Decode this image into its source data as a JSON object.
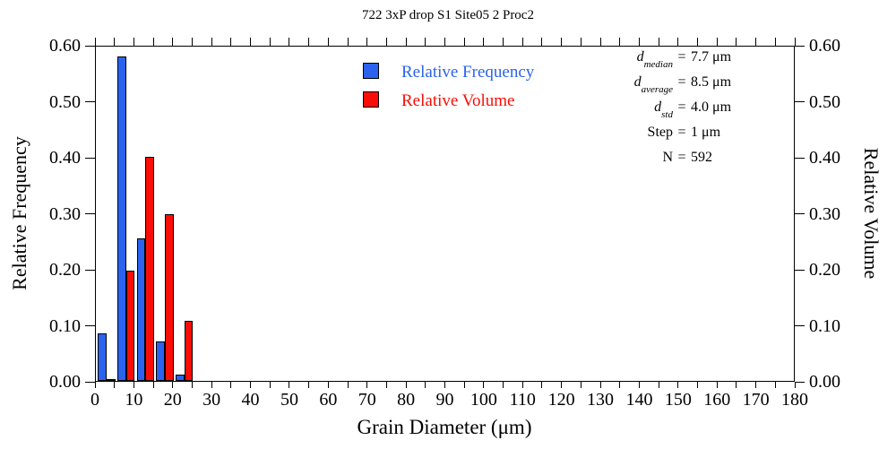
{
  "title": "722 3xP drop S1 Site05 2 Proc2",
  "colors": {
    "frequency": "#2b63ee",
    "volume": "#f90d06",
    "axis": "#000000",
    "background": "#ffffff"
  },
  "axes": {
    "x_label": "Grain Diameter (μm)",
    "y_left_label": "Relative Frequency",
    "y_right_label": "Relative Volume"
  },
  "legend": {
    "items": [
      {
        "label": "Relative Frequency",
        "color": "#2b63ee"
      },
      {
        "label": "Relative Volume",
        "color": "#f90d06"
      }
    ]
  },
  "stats": {
    "lines": [
      {
        "symbol": "d",
        "subscript": "median",
        "italic": true,
        "value": "7.7 μm"
      },
      {
        "symbol": "d",
        "subscript": "average",
        "italic": true,
        "value": "8.5 μm"
      },
      {
        "symbol": "d",
        "subscript": "std",
        "italic": true,
        "value": "4.0 μm"
      },
      {
        "symbol": "Step",
        "subscript": "",
        "italic": false,
        "value": "1 μm"
      },
      {
        "symbol": "N",
        "subscript": "",
        "italic": false,
        "value": "592"
      }
    ]
  },
  "chart_data": {
    "type": "bar",
    "title": "722 3xP drop S1 Site05 2 Proc2",
    "xlabel": "Grain Diameter (μm)",
    "ylabel_left": "Relative Frequency",
    "ylabel_right": "Relative Volume",
    "xlim": [
      0,
      180
    ],
    "ylim": [
      0.0,
      0.6
    ],
    "x_major_tick_step": 10,
    "x_minor_tick_step": 5,
    "y_tick_step": 0.1,
    "y_tick_labels": [
      "0.00",
      "0.10",
      "0.20",
      "0.30",
      "0.40",
      "0.50",
      "0.60"
    ],
    "grid": false,
    "legend_position": "inside-top-center",
    "bin_width_um": 5,
    "categories": [
      "0-5",
      "5-10",
      "10-15",
      "15-20",
      "20-25"
    ],
    "series": [
      {
        "name": "Relative Frequency",
        "color": "#2b63ee",
        "values": [
          0.085,
          0.58,
          0.255,
          0.07,
          0.012
        ]
      },
      {
        "name": "Relative Volume",
        "color": "#f90d06",
        "values": [
          0.002,
          0.197,
          0.4,
          0.298,
          0.107
        ]
      }
    ]
  }
}
